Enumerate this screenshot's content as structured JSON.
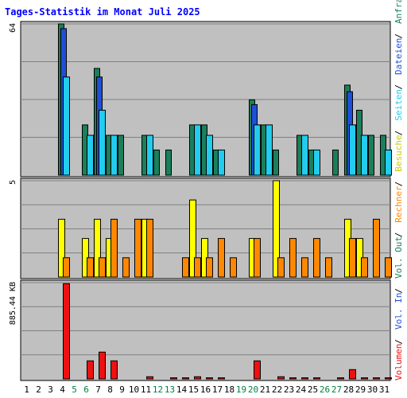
{
  "title": "Tages-Statistik im Monat Juli 2025",
  "chart_data": {
    "type": "bar",
    "days": [
      "1",
      "2",
      "3",
      "4",
      "5",
      "6",
      "7",
      "8",
      "9",
      "10",
      "11",
      "12",
      "13",
      "14",
      "15",
      "16",
      "17",
      "18",
      "19",
      "20",
      "21",
      "22",
      "23",
      "24",
      "25",
      "26",
      "27",
      "28",
      "29",
      "30",
      "31"
    ],
    "weekend_days": [
      "5",
      "6",
      "12",
      "13",
      "19",
      "20",
      "26",
      "27"
    ],
    "panels": [
      {
        "id": "requests",
        "axis_label": "64",
        "scale": "log",
        "ylim": [
          1,
          64
        ],
        "series": [
          {
            "name": "Anfragen",
            "color": "#1a7f5a",
            "values": [
              0,
              0,
              0,
              64,
              0,
              3,
              18,
              2,
              2,
              0,
              2,
              1,
              1,
              0,
              3,
              3,
              1,
              0,
              0,
              7,
              3,
              1,
              0,
              2,
              1,
              0,
              1,
              11,
              5,
              2,
              2
            ]
          },
          {
            "name": "Dateien",
            "color": "#1f4fd8",
            "values": [
              0,
              0,
              0,
              56,
              0,
              0,
              14,
              0,
              0,
              0,
              0,
              0,
              0,
              0,
              0,
              0,
              0,
              0,
              0,
              6,
              0,
              0,
              0,
              0,
              0,
              0,
              0,
              9,
              0,
              0,
              0
            ]
          },
          {
            "name": "Seiten",
            "color": "#22ccee",
            "values": [
              0,
              0,
              0,
              14,
              0,
              2,
              5,
              2,
              0,
              0,
              2,
              0,
              0,
              0,
              3,
              2,
              1,
              0,
              0,
              3,
              3,
              0,
              0,
              2,
              1,
              0,
              0,
              3,
              2,
              0,
              1
            ]
          }
        ]
      },
      {
        "id": "visits",
        "axis_label": "5",
        "scale": "linear",
        "ylim": [
          0,
          5
        ],
        "series": [
          {
            "name": "Besuche",
            "color": "#ffff00",
            "values": [
              0,
              0,
              0,
              3,
              0,
              2,
              3,
              2,
              0,
              0,
              3,
              0,
              0,
              0,
              4,
              2,
              0,
              0,
              0,
              2,
              0,
              5,
              0,
              0,
              0,
              0,
              0,
              3,
              2,
              0,
              0
            ]
          },
          {
            "name": "Rechner",
            "color": "#ff8800",
            "values": [
              0,
              0,
              0,
              1,
              0,
              1,
              1,
              3,
              1,
              3,
              3,
              0,
              0,
              1,
              1,
              1,
              2,
              1,
              0,
              2,
              0,
              1,
              2,
              1,
              2,
              1,
              0,
              2,
              1,
              3,
              1
            ]
          }
        ]
      },
      {
        "id": "volume",
        "axis_label": "885.44 KB",
        "scale": "linear",
        "ylim": [
          0,
          1760
        ],
        "series": [
          {
            "name": "Vol. Out",
            "color": "#1a7f5a",
            "values": [
              0,
              0,
              0,
              0,
              0,
              0,
              0,
              0,
              0,
              0,
              0,
              0,
              0,
              0,
              0,
              0,
              0,
              0,
              0,
              0,
              0,
              0,
              0,
              0,
              0,
              0,
              0,
              0,
              0,
              0,
              0
            ]
          },
          {
            "name": "Vol. In",
            "color": "#1f4fd8",
            "values": [
              0,
              0,
              0,
              0,
              0,
              0,
              0,
              0,
              0,
              0,
              0,
              0,
              0,
              0,
              0,
              0,
              0,
              0,
              0,
              0,
              0,
              0,
              0,
              0,
              0,
              0,
              0,
              0,
              0,
              0,
              0
            ]
          },
          {
            "name": "Volumen",
            "color": "#ee1111",
            "values": [
              0,
              0,
              0,
              1740,
              0,
              330,
              490,
              330,
              0,
              0,
              40,
              0,
              20,
              20,
              40,
              20,
              20,
              0,
              0,
              330,
              0,
              40,
              20,
              20,
              20,
              0,
              20,
              170,
              20,
              20,
              20
            ]
          }
        ]
      }
    ],
    "legend_right": [
      {
        "text": "Anfragen",
        "color": "#1a7f5a"
      },
      {
        "text": "Dateien",
        "color": "#1f4fd8"
      },
      {
        "text": "Seiten",
        "color": "#22ccee"
      },
      {
        "text": "Besuche",
        "color": "#cccc00"
      },
      {
        "text": "Rechner",
        "color": "#ff8800"
      },
      {
        "text": "Vol. Out",
        "color": "#1a7f5a"
      },
      {
        "text": "Vol. In",
        "color": "#1f4fd8"
      },
      {
        "text": "Volumen",
        "color": "#ee1111"
      }
    ],
    "colors": {
      "title": "#0000ff",
      "plot_bg": "#c0c0c0",
      "grid": "#808080",
      "weekday_label": "#000000",
      "weekend_label": "#008040",
      "separator": "#000000"
    }
  }
}
